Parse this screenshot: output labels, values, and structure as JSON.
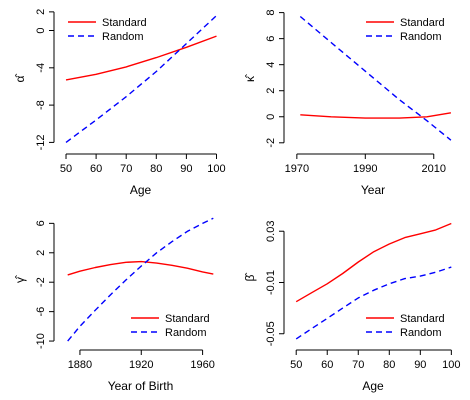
{
  "colors": {
    "standard": "#ff0000",
    "random": "#0000ff",
    "axis": "#000000"
  },
  "chart_data": [
    {
      "type": "line",
      "xlabel": "Age",
      "ylabel": "α̂",
      "xlim": [
        48,
        101.5
      ],
      "ylim": [
        -12.6,
        2.2
      ],
      "xticks": [
        50,
        60,
        70,
        80,
        90,
        100
      ],
      "yticks": [
        -12,
        -8,
        -4,
        0,
        2
      ],
      "legend": "top-left",
      "series": [
        {
          "name": "Standard",
          "style": "solid",
          "color": "#ff0000",
          "x": [
            50,
            60,
            70,
            80,
            90,
            100
          ],
          "y": [
            -5.3,
            -4.7,
            -3.9,
            -2.9,
            -1.8,
            -0.6
          ]
        },
        {
          "name": "Random",
          "style": "dashed",
          "color": "#0000ff",
          "x": [
            50,
            60,
            70,
            80,
            90,
            100
          ],
          "y": [
            -12.0,
            -9.6,
            -7.1,
            -4.4,
            -1.4,
            1.6
          ]
        }
      ]
    },
    {
      "type": "line",
      "xlabel": "Year",
      "ylabel": "κ̂",
      "xlim": [
        1968,
        2016.5
      ],
      "ylim": [
        -2.4,
        8.2
      ],
      "xticks": [
        1970,
        1990,
        2010
      ],
      "yticks": [
        -2,
        0,
        2,
        4,
        6,
        8
      ],
      "legend": "top-right",
      "series": [
        {
          "name": "Standard",
          "style": "solid",
          "color": "#ff0000",
          "x": [
            1971,
            1980,
            1990,
            2000,
            2008,
            2015
          ],
          "y": [
            0.15,
            0.0,
            -0.1,
            -0.1,
            0.0,
            0.3
          ]
        },
        {
          "name": "Random",
          "style": "dashed",
          "color": "#0000ff",
          "x": [
            1971,
            1980,
            1990,
            2000,
            2008,
            2015
          ],
          "y": [
            7.7,
            5.7,
            3.5,
            1.3,
            -0.3,
            -1.8
          ]
        }
      ]
    },
    {
      "type": "line",
      "xlabel": "Year of Birth",
      "ylabel": "γ̂",
      "xlim": [
        1867,
        1972
      ],
      "ylim": [
        -10.4,
        7.0
      ],
      "xticks": [
        1880,
        1920,
        1960
      ],
      "yticks": [
        -10,
        -6,
        -2,
        2,
        6
      ],
      "legend": "bottom-right",
      "series": [
        {
          "name": "Standard",
          "style": "solid",
          "color": "#ff0000",
          "x": [
            1872,
            1880,
            1890,
            1900,
            1910,
            1920,
            1930,
            1940,
            1950,
            1960,
            1967
          ],
          "y": [
            -1.0,
            -0.5,
            0.0,
            0.4,
            0.7,
            0.8,
            0.6,
            0.3,
            -0.1,
            -0.6,
            -0.9
          ]
        },
        {
          "name": "Random",
          "style": "dashed",
          "color": "#0000ff",
          "x": [
            1872,
            1880,
            1890,
            1900,
            1910,
            1920,
            1930,
            1940,
            1950,
            1960,
            1967
          ],
          "y": [
            -10.0,
            -8.0,
            -5.8,
            -3.7,
            -1.7,
            0.2,
            2.0,
            3.5,
            4.9,
            6.0,
            6.7
          ]
        }
      ]
    },
    {
      "type": "line",
      "xlabel": "Age",
      "ylabel": "β̂",
      "xlim": [
        48,
        101.5
      ],
      "ylim": [
        -0.058,
        0.045
      ],
      "xticks": [
        50,
        60,
        70,
        80,
        90,
        100
      ],
      "yticks": [
        -0.05,
        -0.01,
        0.03
      ],
      "ytick_labels": [
        "-0.05",
        "-0.01",
        "0.03"
      ],
      "legend": "bottom-right",
      "series": [
        {
          "name": "Standard",
          "style": "solid",
          "color": "#ff0000",
          "x": [
            50,
            55,
            60,
            65,
            70,
            75,
            80,
            85,
            90,
            95,
            100
          ],
          "y": [
            -0.025,
            -0.018,
            -0.011,
            -0.003,
            0.006,
            0.014,
            0.02,
            0.025,
            0.028,
            0.031,
            0.036
          ]
        },
        {
          "name": "Random",
          "style": "dashed",
          "color": "#0000ff",
          "x": [
            50,
            55,
            60,
            65,
            70,
            75,
            80,
            85,
            90,
            95,
            100
          ],
          "y": [
            -0.054,
            -0.046,
            -0.038,
            -0.03,
            -0.022,
            -0.016,
            -0.011,
            -0.007,
            -0.005,
            -0.002,
            0.002
          ]
        }
      ]
    }
  ]
}
